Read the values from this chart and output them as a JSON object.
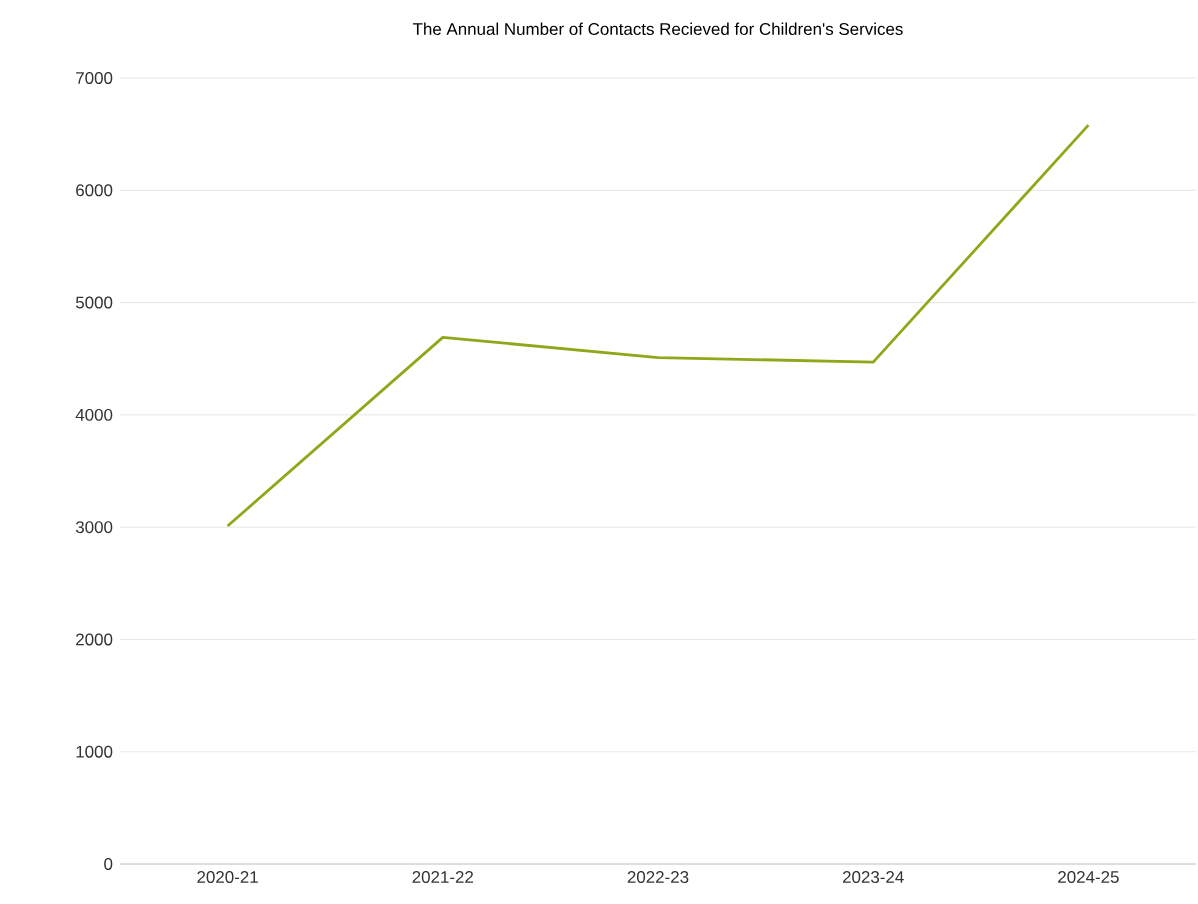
{
  "chart_data": {
    "type": "line",
    "title": "The Annual Number of Contacts Recieved for Children's Services",
    "categories": [
      "2020-21",
      "2021-22",
      "2022-23",
      "2023-24",
      "2024-25"
    ],
    "series": [
      {
        "color": "#8fa81a",
        "values": [
          3010,
          4690,
          4510,
          4470,
          6580
        ]
      }
    ],
    "ylim": [
      0,
      7000
    ],
    "yticks": [
      0,
      1000,
      2000,
      3000,
      4000,
      5000,
      6000,
      7000
    ],
    "grid": "y",
    "marker": "none",
    "line_style": "solid"
  }
}
